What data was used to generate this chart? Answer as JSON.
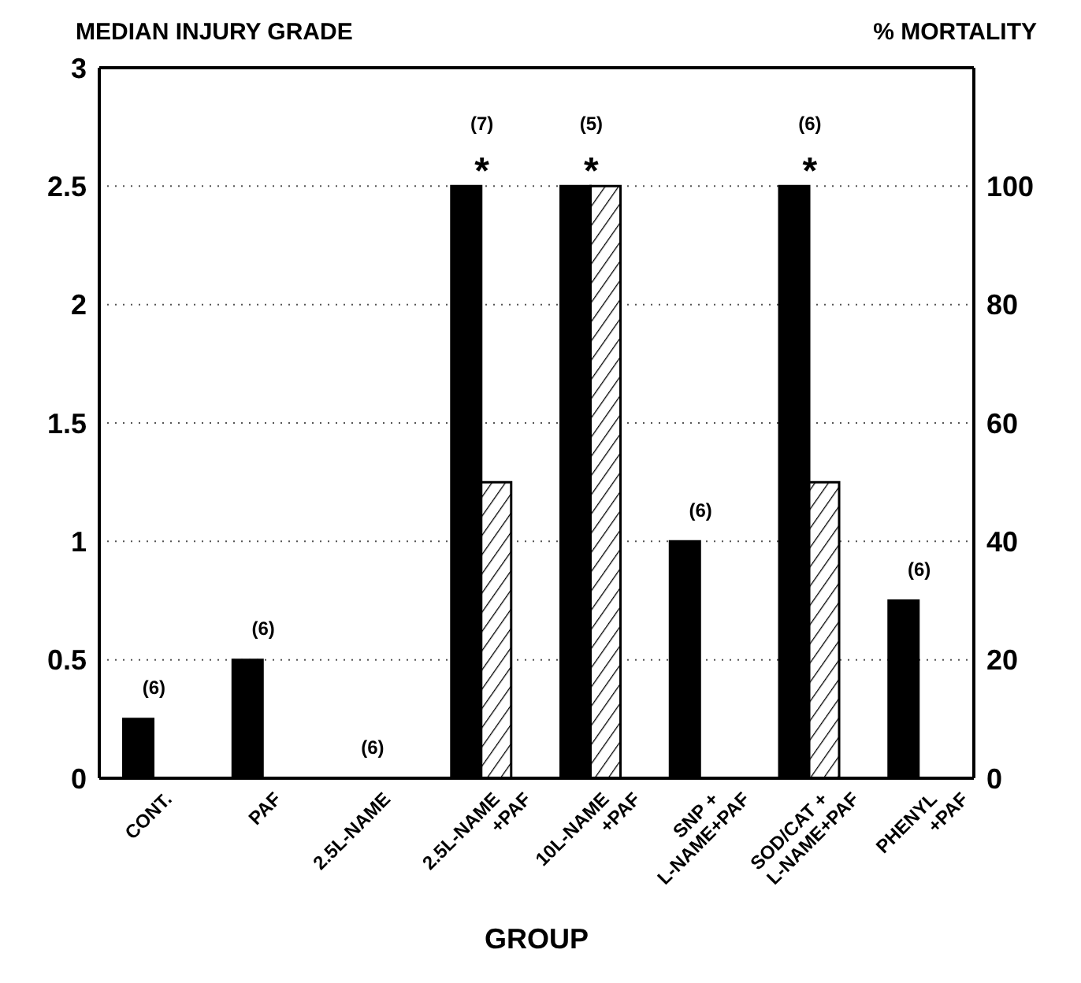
{
  "chart_data": {
    "type": "bar",
    "xlabel": "GROUP",
    "ylabel": "MEDIAN INJURY GRADE",
    "y2label": "% MORTALITY",
    "categories": [
      "CONT.",
      "PAF",
      "2.5L-NAME",
      "2.5L-NAME\n+PAF",
      "10L-NAME\n+PAF",
      "SNP +\nL-NAME+PAF",
      "SOD/CAT +\nL-NAME+PAF",
      "PHENYL\n+PAF"
    ],
    "series": [
      {
        "color": "#000000",
        "values": [
          0.25,
          0.5,
          0,
          2.5,
          2.5,
          1,
          2.5,
          0.75
        ]
      },
      {
        "color": "#000000",
        "axis": "y2",
        "values": [
          0,
          0,
          0,
          50,
          100,
          0,
          50,
          0
        ]
      }
    ],
    "ylim": [
      0,
      3
    ],
    "yticks": [
      0,
      0.5,
      1,
      1.5,
      2,
      2.5,
      3
    ],
    "y2lim": [
      0,
      120
    ],
    "y2ticks": [
      0,
      20,
      40,
      60,
      80,
      100
    ],
    "grid": "y",
    "annotations": [
      {
        "text": "(6)",
        "x": "CONT.",
        "y": 0.25
      },
      {
        "text": "(6)",
        "x": "PAF",
        "y": 0.5
      },
      {
        "text": "(6)",
        "x": "2.5L-NAME",
        "y": 0
      },
      {
        "text": "*",
        "x": "2.5L-NAME\n+PAF",
        "y": 2.5
      },
      {
        "text": "(7)",
        "x": "2.5L-NAME\n+PAF",
        "y": 2.5
      },
      {
        "text": "*",
        "x": "10L-NAME\n+PAF",
        "y": 2.5
      },
      {
        "text": "(5)",
        "x": "10L-NAME\n+PAF",
        "y": 2.5
      },
      {
        "text": "(6)",
        "x": "SNP +\nL-NAME+PAF",
        "y": 1
      },
      {
        "text": "*",
        "x": "SOD/CAT +\nL-NAME+PAF",
        "y": 2.5
      },
      {
        "text": "(6)",
        "x": "SOD/CAT +\nL-NAME+PAF",
        "y": 2.5
      },
      {
        "text": "(6)",
        "x": "PHENYL\n+PAF",
        "y": 0.75
      }
    ]
  }
}
